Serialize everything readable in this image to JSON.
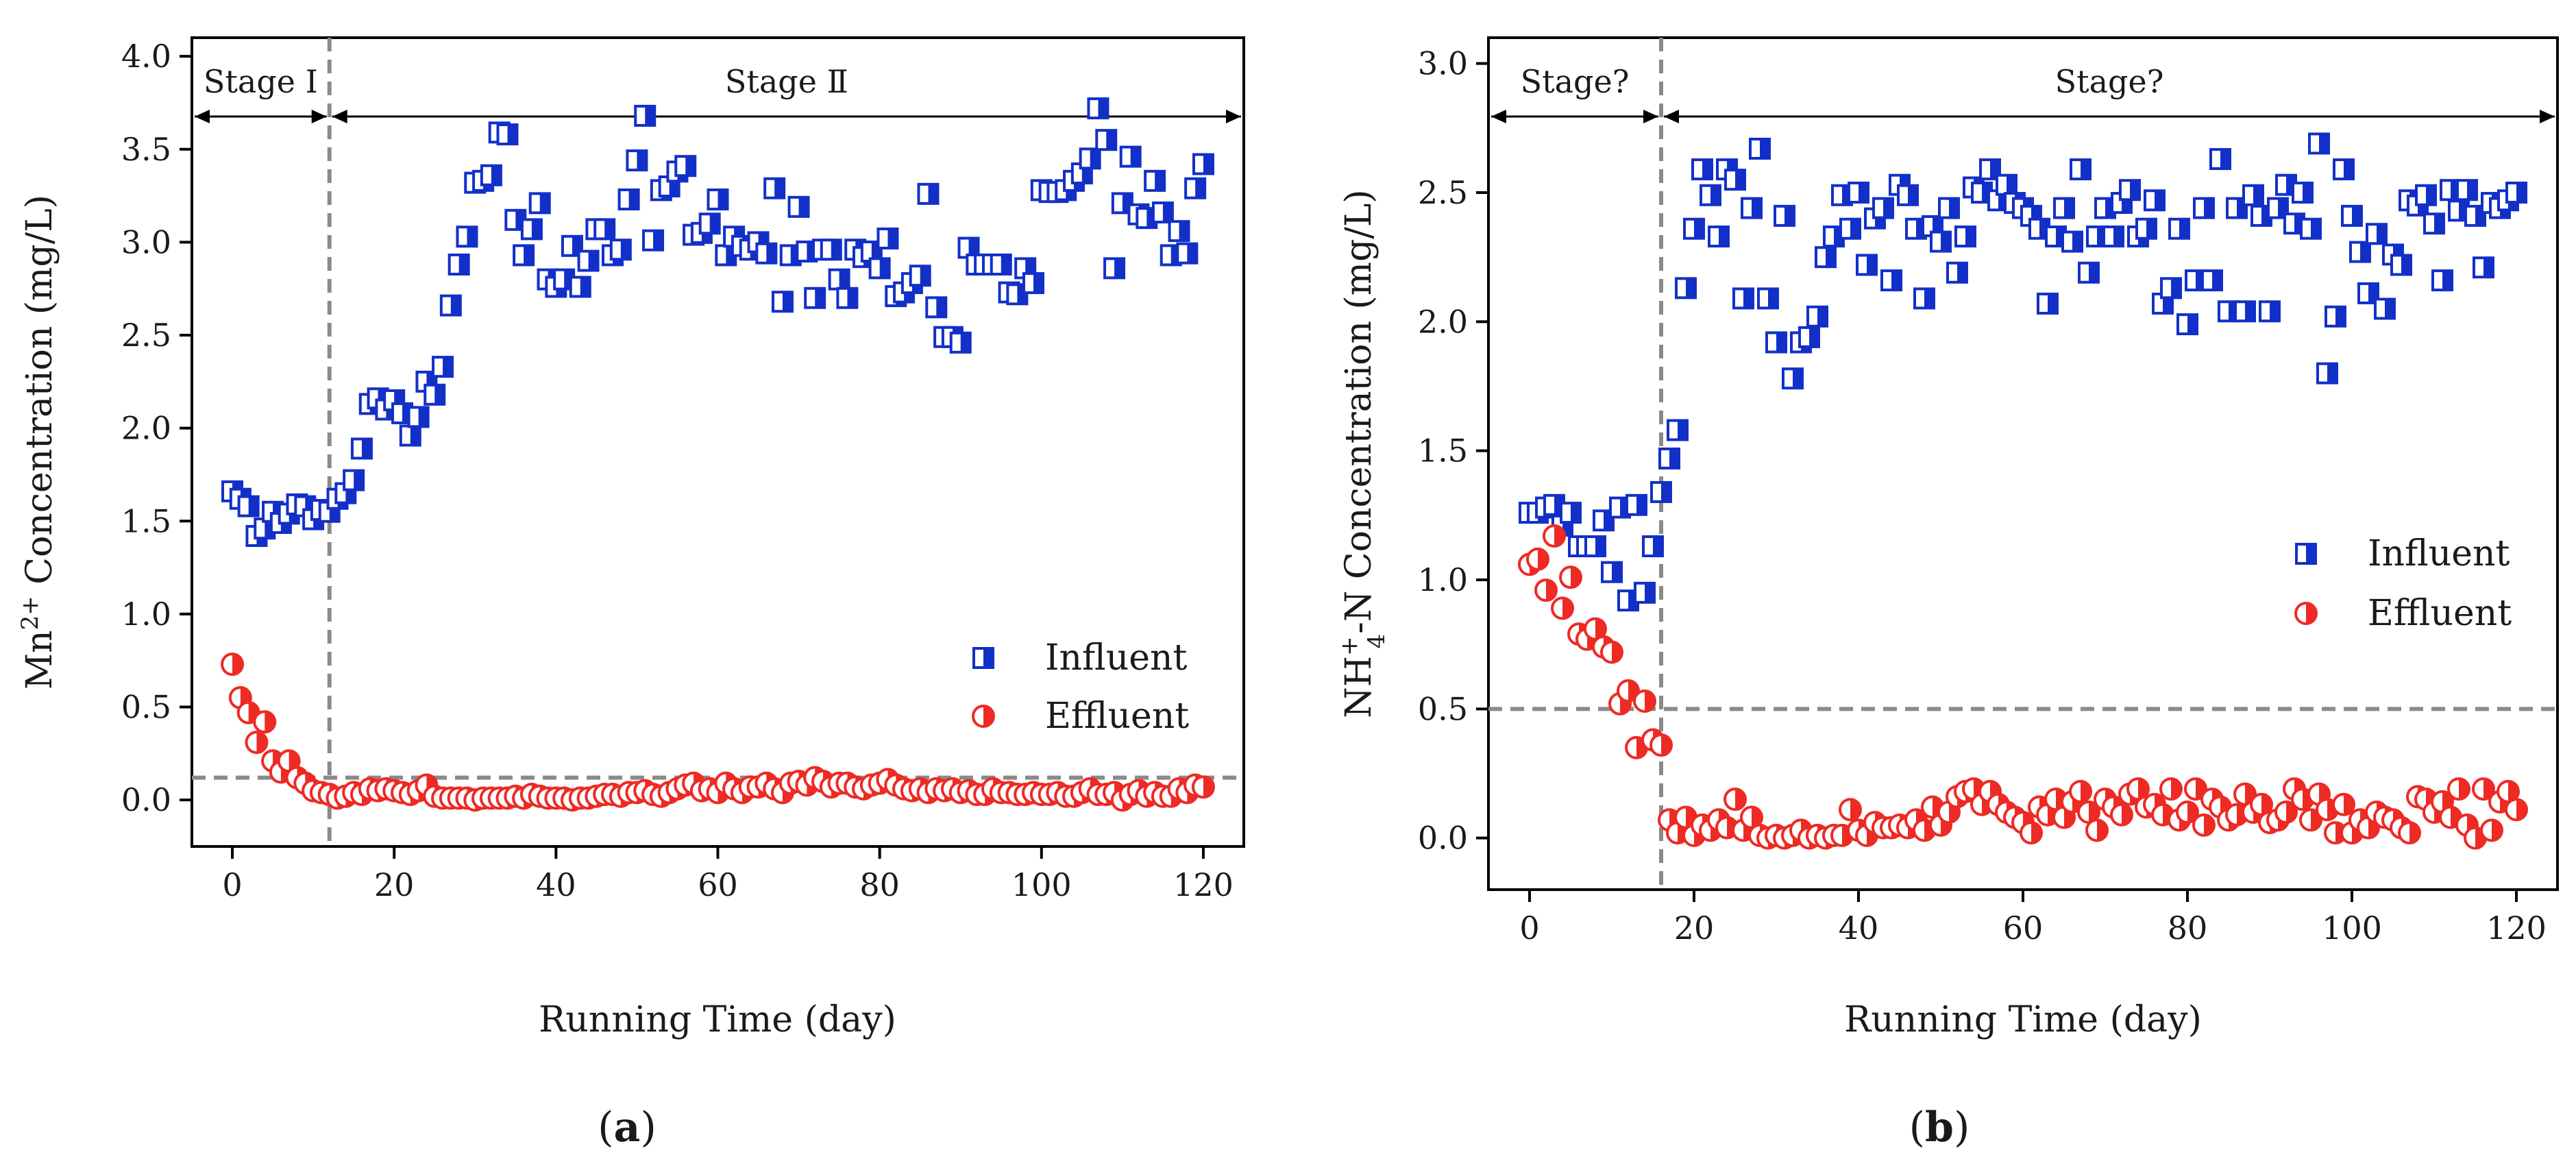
{
  "chart_data": [
    {
      "type": "scatter",
      "panel_label": "a",
      "xlabel": "Running Time (day)",
      "ylabel": {
        "base": "Mn",
        "sup": "2+",
        "rest": " Concentration (mg/L)"
      },
      "xlim": [
        -5,
        125
      ],
      "ylim": [
        -0.25,
        4.1
      ],
      "xticks": [
        0,
        20,
        40,
        60,
        80,
        100,
        120
      ],
      "yticks": [
        "0.0",
        "0.5",
        "1.0",
        "1.5",
        "2.0",
        "2.5",
        "3.0",
        "3.5",
        "4.0"
      ],
      "grid": false,
      "legend_position": "right-middle",
      "stages": [
        {
          "label": "Stage Ⅰ",
          "x_start": -5,
          "x_end": 12
        },
        {
          "label": "Stage Ⅱ",
          "x_start": 12,
          "x_end": 125
        }
      ],
      "reference_lines": {
        "vertical_x": 12,
        "horizontal_y": 0.12
      },
      "series": [
        {
          "name": "Influent",
          "marker": "half-filled-square",
          "color": "#1230c8",
          "x": [
            0,
            1,
            2,
            3,
            4,
            5,
            6,
            7,
            8,
            9,
            10,
            11,
            12,
            13,
            14,
            15,
            16,
            17,
            18,
            19,
            20,
            21,
            22,
            23,
            24,
            25,
            26,
            27,
            28,
            29,
            30,
            31,
            32,
            33,
            34,
            35,
            36,
            37,
            38,
            39,
            40,
            41,
            42,
            43,
            44,
            45,
            46,
            47,
            48,
            49,
            50,
            51,
            52,
            53,
            54,
            55,
            56,
            57,
            58,
            59,
            60,
            61,
            62,
            63,
            64,
            65,
            66,
            67,
            68,
            69,
            70,
            71,
            72,
            73,
            74,
            75,
            76,
            77,
            78,
            79,
            80,
            81,
            82,
            83,
            84,
            85,
            86,
            87,
            88,
            89,
            90,
            91,
            92,
            93,
            94,
            95,
            96,
            97,
            98,
            99,
            100,
            101,
            102,
            103,
            104,
            105,
            106,
            107,
            108,
            109,
            110,
            111,
            112,
            113,
            114,
            115,
            116,
            117,
            118,
            119,
            120
          ],
          "y": [
            1.66,
            1.62,
            1.58,
            1.42,
            1.46,
            1.55,
            1.49,
            1.54,
            1.59,
            1.58,
            1.51,
            1.56,
            1.55,
            1.62,
            1.65,
            1.72,
            1.89,
            2.13,
            2.16,
            2.1,
            2.15,
            2.08,
            1.96,
            2.06,
            2.25,
            2.18,
            2.33,
            2.66,
            2.88,
            3.03,
            3.32,
            3.33,
            3.36,
            3.59,
            3.58,
            3.12,
            2.93,
            3.07,
            3.21,
            2.8,
            2.76,
            2.8,
            2.98,
            2.76,
            2.9,
            3.07,
            3.07,
            2.93,
            2.96,
            3.23,
            3.44,
            3.68,
            3.01,
            3.28,
            3.3,
            3.38,
            3.41,
            3.04,
            3.05,
            3.1,
            3.23,
            2.93,
            3.03,
            2.98,
            2.96,
            3.0,
            2.94,
            3.29,
            2.68,
            2.93,
            3.19,
            2.95,
            2.7,
            2.96,
            2.96,
            2.8,
            2.7,
            2.96,
            2.92,
            2.95,
            2.86,
            3.02,
            2.71,
            2.73,
            2.78,
            2.82,
            3.26,
            2.65,
            2.49,
            2.49,
            2.46,
            2.97,
            2.88,
            2.88,
            2.88,
            2.88,
            2.73,
            2.72,
            2.86,
            2.78,
            3.28,
            3.27,
            3.27,
            3.28,
            3.33,
            3.37,
            3.45,
            3.72,
            3.55,
            2.86,
            3.21,
            3.46,
            3.15,
            3.13,
            3.33,
            3.16,
            2.93,
            3.06,
            2.94,
            3.29,
            3.42
          ]
        },
        {
          "name": "Effluent",
          "marker": "half-filled-circle",
          "color": "#ee2a24",
          "x": [
            0,
            1,
            2,
            3,
            4,
            5,
            6,
            7,
            8,
            9,
            10,
            11,
            12,
            13,
            14,
            15,
            16,
            17,
            18,
            19,
            20,
            21,
            22,
            23,
            24,
            25,
            26,
            27,
            28,
            29,
            30,
            31,
            32,
            33,
            34,
            35,
            36,
            37,
            38,
            39,
            40,
            41,
            42,
            43,
            44,
            45,
            46,
            47,
            48,
            49,
            50,
            51,
            52,
            53,
            54,
            55,
            56,
            57,
            58,
            59,
            60,
            61,
            62,
            63,
            64,
            65,
            66,
            67,
            68,
            69,
            70,
            71,
            72,
            73,
            74,
            75,
            76,
            77,
            78,
            79,
            80,
            81,
            82,
            83,
            84,
            85,
            86,
            87,
            88,
            89,
            90,
            91,
            92,
            93,
            94,
            95,
            96,
            97,
            98,
            99,
            100,
            101,
            102,
            103,
            104,
            105,
            106,
            107,
            108,
            109,
            110,
            111,
            112,
            113,
            114,
            115,
            116,
            117,
            118,
            119,
            120
          ],
          "y": [
            0.73,
            0.55,
            0.47,
            0.31,
            0.42,
            0.21,
            0.15,
            0.21,
            0.12,
            0.09,
            0.05,
            0.04,
            0.03,
            0.01,
            0.02,
            0.04,
            0.03,
            0.06,
            0.05,
            0.06,
            0.05,
            0.04,
            0.03,
            0.05,
            0.08,
            0.02,
            0.01,
            0.01,
            0.01,
            0.01,
            0.0,
            0.01,
            0.01,
            0.01,
            0.01,
            0.02,
            0.01,
            0.03,
            0.02,
            0.01,
            0.01,
            0.01,
            0.0,
            0.01,
            0.01,
            0.02,
            0.03,
            0.03,
            0.02,
            0.04,
            0.04,
            0.05,
            0.03,
            0.02,
            0.04,
            0.06,
            0.08,
            0.09,
            0.05,
            0.06,
            0.04,
            0.09,
            0.06,
            0.04,
            0.07,
            0.07,
            0.09,
            0.06,
            0.04,
            0.09,
            0.1,
            0.08,
            0.12,
            0.1,
            0.07,
            0.09,
            0.09,
            0.07,
            0.06,
            0.08,
            0.09,
            0.11,
            0.08,
            0.06,
            0.05,
            0.06,
            0.04,
            0.06,
            0.05,
            0.06,
            0.04,
            0.05,
            0.03,
            0.03,
            0.06,
            0.04,
            0.04,
            0.03,
            0.03,
            0.04,
            0.03,
            0.03,
            0.04,
            0.02,
            0.02,
            0.04,
            0.06,
            0.03,
            0.03,
            0.04,
            0.0,
            0.03,
            0.05,
            0.02,
            0.04,
            0.02,
            0.02,
            0.06,
            0.04,
            0.08,
            0.07
          ]
        }
      ]
    },
    {
      "type": "scatter",
      "panel_label": "b",
      "xlabel": "Running Time (day)",
      "ylabel": {
        "base": "NH",
        "sup": "+",
        "sub": "4",
        "rest": "-N Concentration (mg/L)"
      },
      "xlim": [
        -5,
        125
      ],
      "ylim": [
        -0.2,
        3.1
      ],
      "xticks": [
        0,
        20,
        40,
        60,
        80,
        100,
        120
      ],
      "yticks": [
        "0.0",
        "0.5",
        "1.0",
        "1.5",
        "2.0",
        "2.5",
        "3.0"
      ],
      "grid": false,
      "legend_position": "right-middle",
      "stages": [
        {
          "label": "Stage?",
          "x_start": -5,
          "x_end": 16
        },
        {
          "label": "Stage?",
          "x_start": 16,
          "x_end": 125
        }
      ],
      "reference_lines": {
        "vertical_x": 16,
        "horizontal_y": 0.5
      },
      "series": [
        {
          "name": "Influent",
          "marker": "half-filled-square",
          "color": "#1230c8",
          "x": [
            0,
            1,
            2,
            3,
            4,
            5,
            6,
            7,
            8,
            9,
            10,
            11,
            12,
            13,
            14,
            15,
            16,
            17,
            18,
            19,
            20,
            21,
            22,
            23,
            24,
            25,
            26,
            27,
            28,
            29,
            30,
            31,
            32,
            33,
            34,
            35,
            36,
            37,
            38,
            39,
            40,
            41,
            42,
            43,
            44,
            45,
            46,
            47,
            48,
            49,
            50,
            51,
            52,
            53,
            54,
            55,
            56,
            57,
            58,
            59,
            60,
            61,
            62,
            63,
            64,
            65,
            66,
            67,
            68,
            69,
            70,
            71,
            72,
            73,
            74,
            75,
            76,
            77,
            78,
            79,
            80,
            81,
            82,
            83,
            84,
            85,
            86,
            87,
            88,
            89,
            90,
            91,
            92,
            93,
            94,
            95,
            96,
            97,
            98,
            99,
            100,
            101,
            102,
            103,
            104,
            105,
            106,
            107,
            108,
            109,
            110,
            111,
            112,
            113,
            114,
            115,
            116,
            117,
            118,
            119,
            120
          ],
          "y": [
            1.26,
            1.26,
            1.28,
            1.29,
            1.21,
            1.26,
            1.13,
            1.13,
            1.13,
            1.23,
            1.03,
            1.28,
            0.92,
            1.29,
            0.95,
            1.13,
            1.34,
            1.47,
            1.58,
            2.13,
            2.36,
            2.59,
            2.49,
            2.33,
            2.59,
            2.55,
            2.09,
            2.44,
            2.67,
            2.09,
            1.92,
            2.41,
            1.78,
            1.92,
            1.94,
            2.02,
            2.25,
            2.33,
            2.49,
            2.36,
            2.5,
            2.22,
            2.4,
            2.44,
            2.16,
            2.53,
            2.49,
            2.36,
            2.09,
            2.37,
            2.31,
            2.44,
            2.19,
            2.33,
            2.52,
            2.5,
            2.59,
            2.47,
            2.53,
            2.46,
            2.44,
            2.41,
            2.36,
            2.07,
            2.33,
            2.44,
            2.31,
            2.59,
            2.19,
            2.33,
            2.44,
            2.33,
            2.46,
            2.51,
            2.33,
            2.36,
            2.47,
            2.07,
            2.13,
            2.36,
            1.99,
            2.16,
            2.44,
            2.16,
            2.63,
            2.04,
            2.44,
            2.04,
            2.49,
            2.41,
            2.04,
            2.44,
            2.53,
            2.38,
            2.5,
            2.36,
            2.69,
            1.8,
            2.02,
            2.59,
            2.41,
            2.27,
            2.11,
            2.34,
            2.05,
            2.26,
            2.22,
            2.47,
            2.45,
            2.49,
            2.38,
            2.16,
            2.51,
            2.43,
            2.51,
            2.41,
            2.21,
            2.46,
            2.44,
            2.47,
            2.5
          ]
        },
        {
          "name": "Effluent",
          "marker": "half-filled-circle",
          "color": "#ee2a24",
          "x": [
            0,
            1,
            2,
            3,
            4,
            5,
            6,
            7,
            8,
            9,
            10,
            11,
            12,
            13,
            14,
            15,
            16,
            17,
            18,
            19,
            20,
            21,
            22,
            23,
            24,
            25,
            26,
            27,
            28,
            29,
            30,
            31,
            32,
            33,
            34,
            35,
            36,
            37,
            38,
            39,
            40,
            41,
            42,
            43,
            44,
            45,
            46,
            47,
            48,
            49,
            50,
            51,
            52,
            53,
            54,
            55,
            56,
            57,
            58,
            59,
            60,
            61,
            62,
            63,
            64,
            65,
            66,
            67,
            68,
            69,
            70,
            71,
            72,
            73,
            74,
            75,
            76,
            77,
            78,
            79,
            80,
            81,
            82,
            83,
            84,
            85,
            86,
            87,
            88,
            89,
            90,
            91,
            92,
            93,
            94,
            95,
            96,
            97,
            98,
            99,
            100,
            101,
            102,
            103,
            104,
            105,
            106,
            107,
            108,
            109,
            110,
            111,
            112,
            113,
            114,
            115,
            116,
            117,
            118,
            119,
            120
          ],
          "y": [
            1.06,
            1.08,
            0.96,
            1.17,
            0.89,
            1.01,
            0.79,
            0.77,
            0.81,
            0.74,
            0.72,
            0.52,
            0.57,
            0.35,
            0.53,
            0.38,
            0.36,
            0.07,
            0.02,
            0.08,
            0.01,
            0.05,
            0.03,
            0.07,
            0.04,
            0.15,
            0.03,
            0.08,
            0.01,
            0.0,
            0.01,
            0.0,
            0.01,
            0.03,
            0.0,
            0.01,
            0.0,
            0.01,
            0.01,
            0.11,
            0.03,
            0.01,
            0.06,
            0.04,
            0.04,
            0.05,
            0.04,
            0.07,
            0.03,
            0.12,
            0.05,
            0.1,
            0.16,
            0.18,
            0.19,
            0.13,
            0.18,
            0.13,
            0.1,
            0.08,
            0.06,
            0.02,
            0.12,
            0.09,
            0.15,
            0.08,
            0.14,
            0.18,
            0.1,
            0.03,
            0.15,
            0.12,
            0.09,
            0.17,
            0.19,
            0.12,
            0.13,
            0.09,
            0.19,
            0.07,
            0.1,
            0.19,
            0.05,
            0.15,
            0.12,
            0.07,
            0.09,
            0.17,
            0.1,
            0.13,
            0.06,
            0.07,
            0.1,
            0.19,
            0.15,
            0.07,
            0.17,
            0.11,
            0.02,
            0.13,
            0.02,
            0.07,
            0.04,
            0.1,
            0.08,
            0.07,
            0.04,
            0.02,
            0.16,
            0.15,
            0.1,
            0.14,
            0.08,
            0.19,
            0.05,
            0.0,
            0.19,
            0.03,
            0.14,
            0.18,
            0.11
          ]
        }
      ]
    }
  ]
}
